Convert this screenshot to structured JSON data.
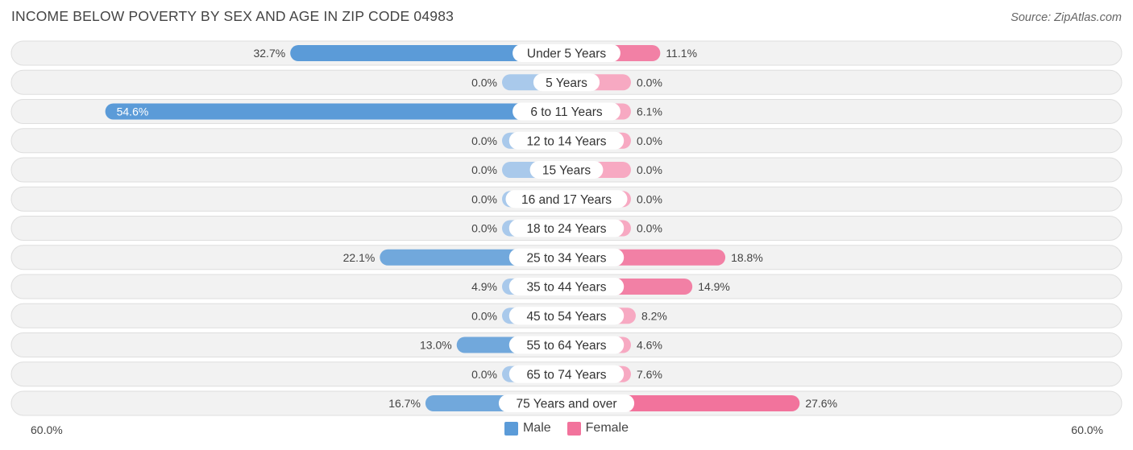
{
  "header": {
    "title": "INCOME BELOW POVERTY BY SEX AND AGE IN ZIP CODE 04983",
    "source": "Source: ZipAtlas.com"
  },
  "legend": {
    "male_label": "Male",
    "female_label": "Female"
  },
  "axis": {
    "left_label": "60.0%",
    "right_label": "60.0%"
  },
  "colors": {
    "male_strong": "#5b9bd8",
    "male_light": "#a9c9eb",
    "female_strong": "#f2739c",
    "female_light": "#f7a9c2",
    "row_bg": "#f2f2f2",
    "row_border": "#dedede"
  },
  "chart_data": {
    "type": "bar",
    "orientation": "horizontal-diverging",
    "title": "INCOME BELOW POVERTY BY SEX AND AGE IN ZIP CODE 04983",
    "xlim": [
      -60,
      60
    ],
    "categories": [
      "Under 5 Years",
      "5 Years",
      "6 to 11 Years",
      "12 to 14 Years",
      "15 Years",
      "16 and 17 Years",
      "18 to 24 Years",
      "25 to 34 Years",
      "35 to 44 Years",
      "45 to 54 Years",
      "55 to 64 Years",
      "65 to 74 Years",
      "75 Years and over"
    ],
    "series": [
      {
        "name": "Male",
        "values": [
          32.7,
          0.0,
          54.6,
          0.0,
          0.0,
          0.0,
          0.0,
          22.1,
          4.9,
          0.0,
          13.0,
          0.0,
          16.7
        ],
        "labels": [
          "32.7%",
          "0.0%",
          "54.6%",
          "0.0%",
          "0.0%",
          "0.0%",
          "0.0%",
          "22.1%",
          "4.9%",
          "0.0%",
          "13.0%",
          "0.0%",
          "16.7%"
        ]
      },
      {
        "name": "Female",
        "values": [
          11.1,
          0.0,
          6.1,
          0.0,
          0.0,
          0.0,
          0.0,
          18.8,
          14.9,
          8.2,
          4.6,
          7.6,
          27.6
        ],
        "labels": [
          "11.1%",
          "0.0%",
          "6.1%",
          "0.0%",
          "0.0%",
          "0.0%",
          "0.0%",
          "18.8%",
          "14.9%",
          "8.2%",
          "4.6%",
          "7.6%",
          "27.6%"
        ]
      }
    ],
    "legend_position": "bottom-center"
  }
}
